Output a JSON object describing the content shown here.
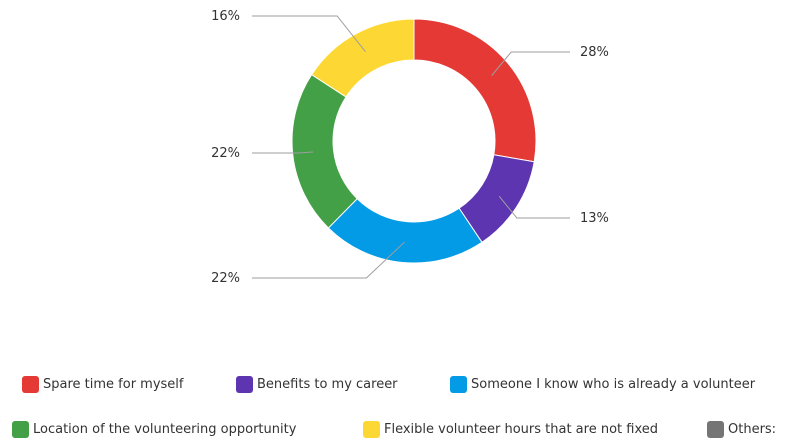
{
  "chart_data": {
    "type": "pie",
    "donut": true,
    "title": "",
    "slices": [
      {
        "name": "Spare time for myself",
        "value": 28,
        "label": "28%",
        "color": "#e53935"
      },
      {
        "name": "Benefits to my career",
        "value": 13,
        "label": "13%",
        "color": "#5e35b1"
      },
      {
        "name": "Someone I know who is already a volunteer",
        "value": 22,
        "label": "22%",
        "color": "#039be5"
      },
      {
        "name": "Location of the volunteering opportunity",
        "value": 22,
        "label": "22%",
        "color": "#43a047"
      },
      {
        "name": "Flexible volunteer hours that are not fixed",
        "value": 16,
        "label": "16%",
        "color": "#fdd835"
      },
      {
        "name": "Others:",
        "value": 0,
        "label": "",
        "color": "#757575"
      }
    ],
    "legend": {
      "position": "bottom",
      "rows": [
        [
          {
            "label": "Spare time for myself",
            "color": "#e53935"
          },
          {
            "label": "Benefits to my career",
            "color": "#5e35b1"
          },
          {
            "label": "Someone I know who is already a volunteer",
            "color": "#039be5"
          }
        ],
        [
          {
            "label": "Location of the volunteering opportunity",
            "color": "#43a047"
          },
          {
            "label": "Flexible volunteer hours that are not fixed",
            "color": "#fdd835"
          },
          {
            "label": "Others:",
            "color": "#757575"
          }
        ]
      ]
    }
  }
}
